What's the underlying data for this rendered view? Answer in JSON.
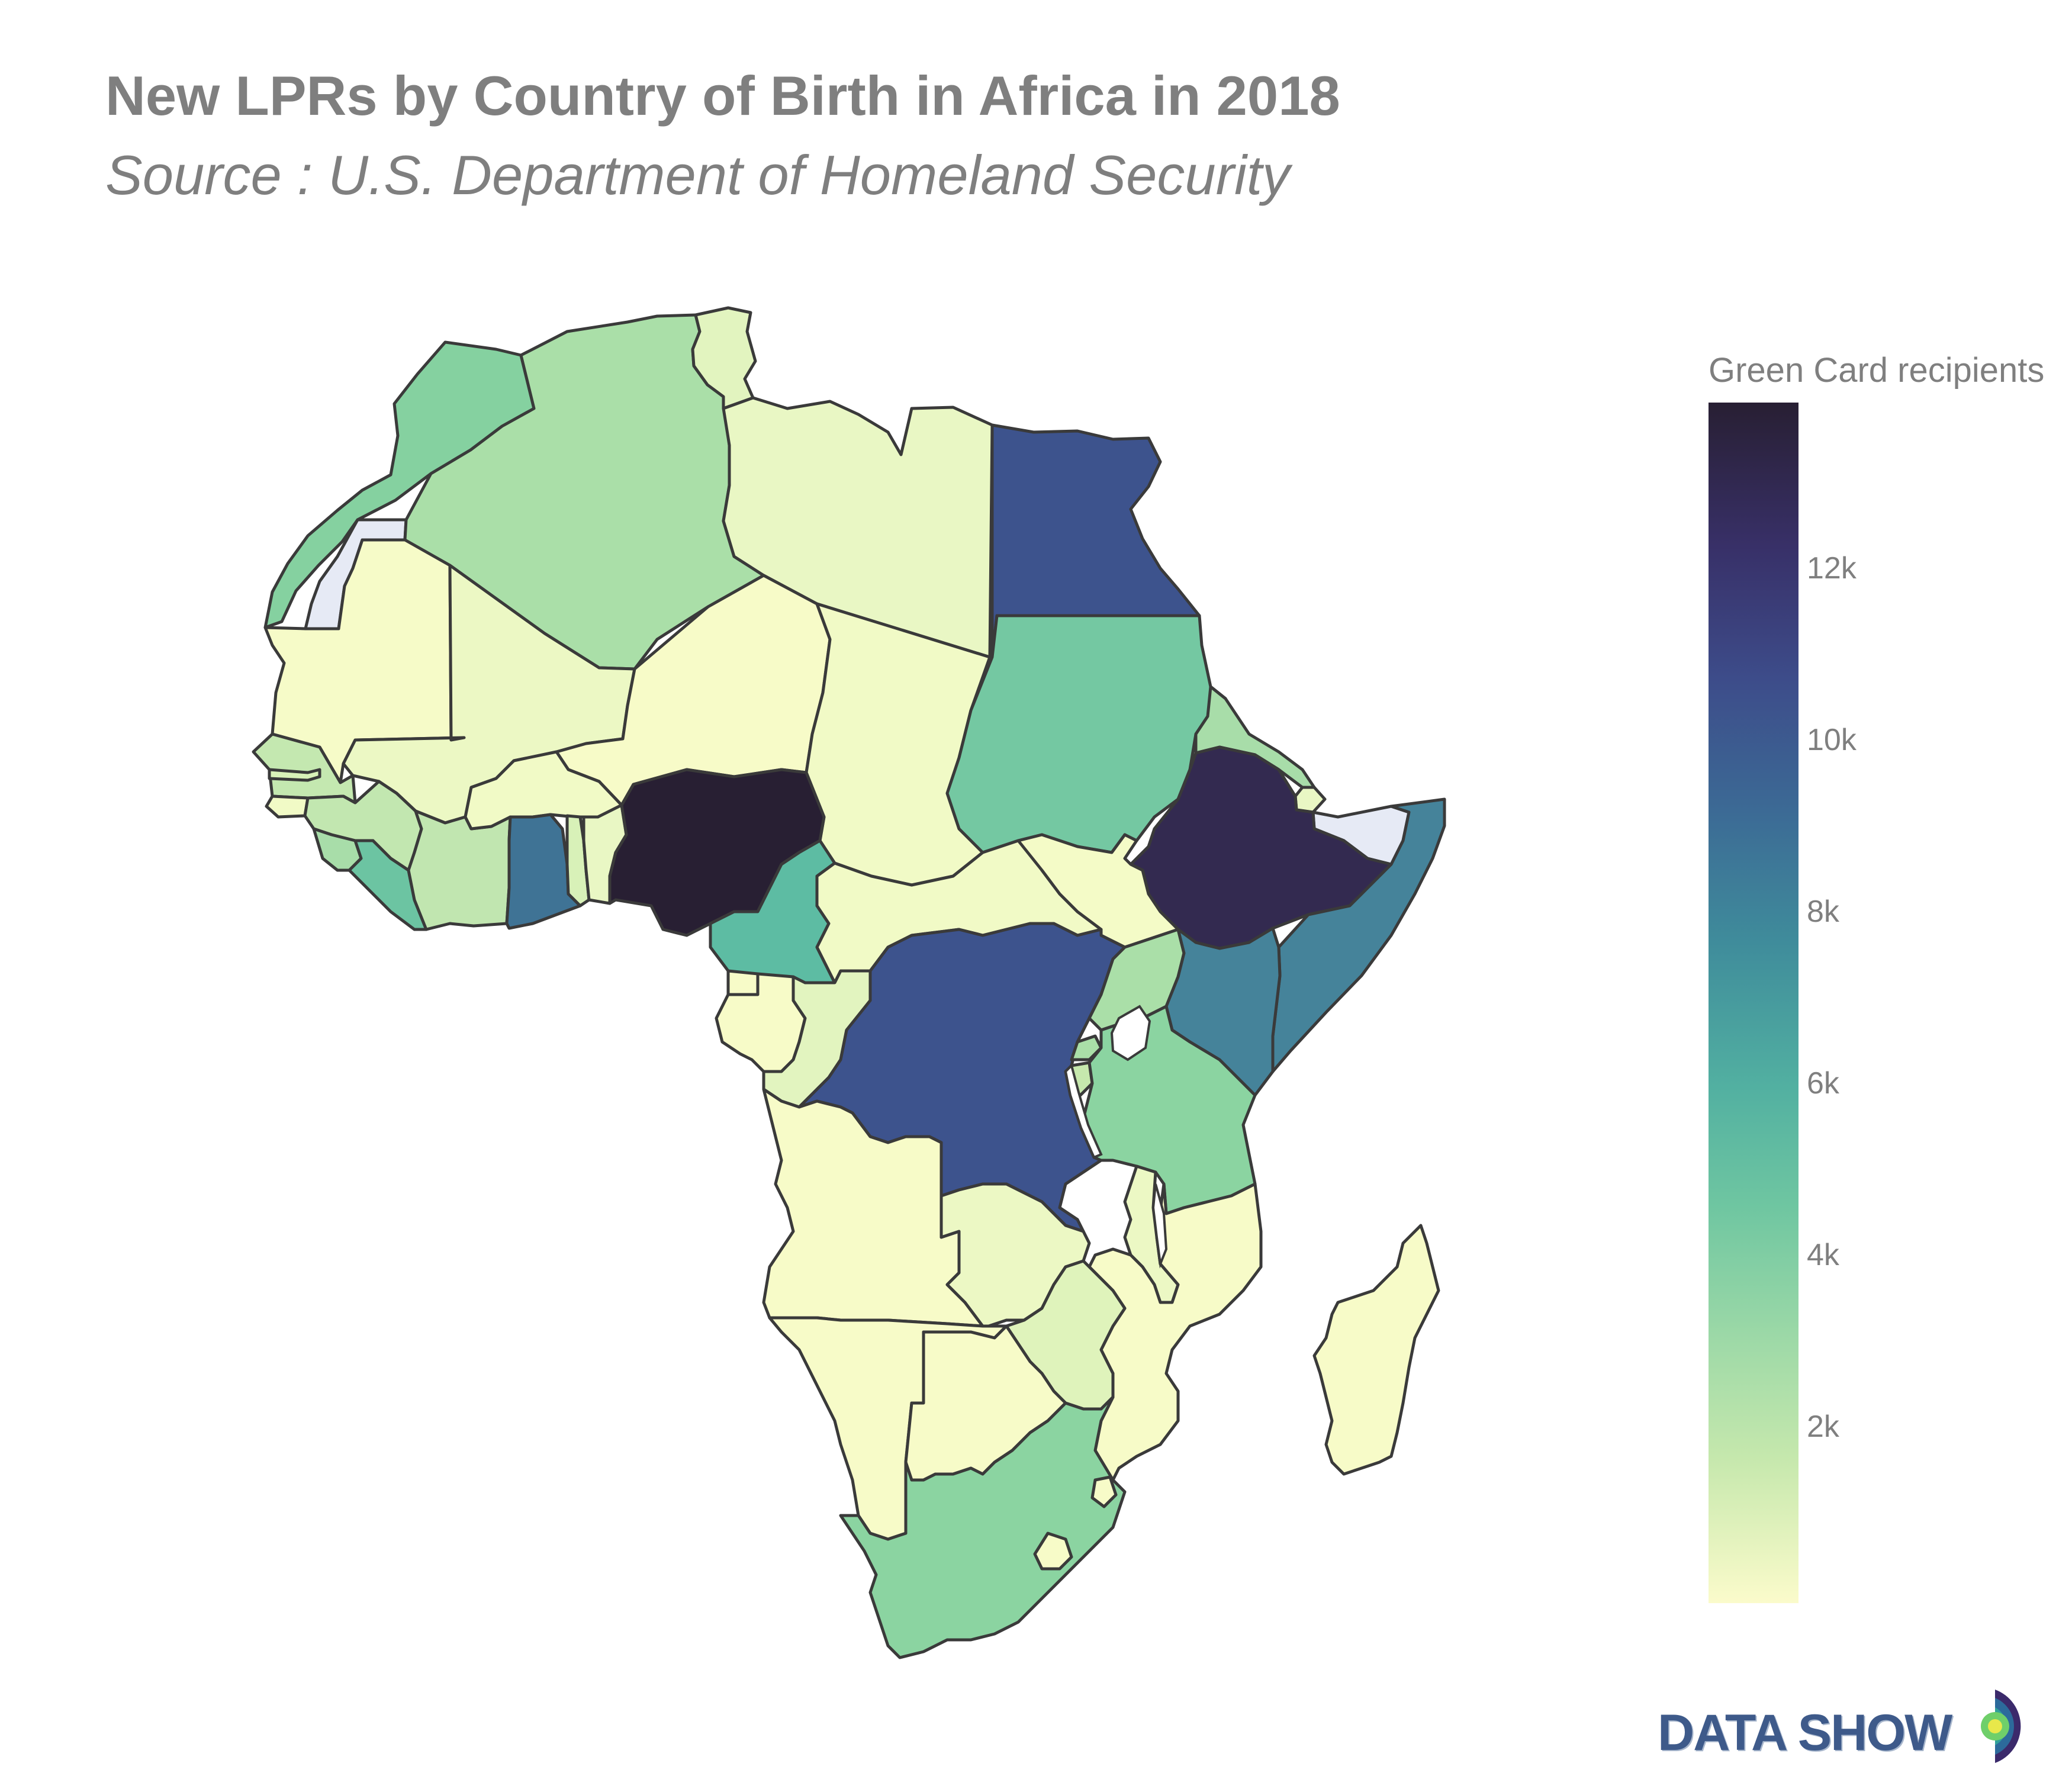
{
  "title": "New LPRs by Country of Birth in Africa in 2018",
  "subtitle": "Source : U.S. Department of Homeland Security",
  "colorbar": {
    "title": "Green Card recipients",
    "ticks": [
      {
        "label": "12k",
        "value": 12000
      },
      {
        "label": "10k",
        "value": 10000
      },
      {
        "label": "8k",
        "value": 8000
      },
      {
        "label": "6k",
        "value": 6000
      },
      {
        "label": "4k",
        "value": 4000
      },
      {
        "label": "2k",
        "value": 2000
      }
    ],
    "range": [
      0,
      14000
    ],
    "colors": [
      "#fbfbcb",
      "#c6e8ad",
      "#9dd9a7",
      "#6fc6a1",
      "#52b0a1",
      "#3f8c9b",
      "#3c6a95",
      "#3d4c8a",
      "#383068",
      "#281f33"
    ]
  },
  "brand": {
    "text": "DATA SHOW",
    "icon": "datashow-logo-icon"
  },
  "map": {
    "border_color": "#3a3a3a",
    "no_data_color": "#e6eaf5",
    "regions": [
      {
        "shape": "Morocco",
        "fill": "#85d1a0"
      },
      {
        "shape": "Western Sahara",
        "fill": "#e6eaf5"
      },
      {
        "shape": "Algeria",
        "fill": "#aadfa8"
      },
      {
        "shape": "Tunisia",
        "fill": "#e2f4bf"
      },
      {
        "shape": "Libya",
        "fill": "#e9f7c4"
      },
      {
        "shape": "Egypt",
        "fill": "#3d538d"
      },
      {
        "shape": "Mauritania",
        "fill": "#f6fbc8"
      },
      {
        "shape": "Mali",
        "fill": "#ecf8c4"
      },
      {
        "shape": "Niger",
        "fill": "#f7fbc8"
      },
      {
        "shape": "Chad",
        "fill": "#f1fac6"
      },
      {
        "shape": "Sudan",
        "fill": "#74c8a2"
      },
      {
        "shape": "Eritrea",
        "fill": "#a8dda9"
      },
      {
        "shape": "Djibouti",
        "fill": "#e9f7c4"
      },
      {
        "shape": "Somaliland",
        "fill": "#e6eaf5"
      },
      {
        "shape": "Ethiopia",
        "fill": "#332a50"
      },
      {
        "shape": "Somalia",
        "fill": "#45839a"
      },
      {
        "shape": "Senegal",
        "fill": "#c4e8b0"
      },
      {
        "shape": "Gambia",
        "fill": "#d8f1b8"
      },
      {
        "shape": "Guinea-Bissau",
        "fill": "#f1fac6"
      },
      {
        "shape": "Guinea",
        "fill": "#c2e7b0"
      },
      {
        "shape": "Sierra Leone",
        "fill": "#a8dda9"
      },
      {
        "shape": "Liberia",
        "fill": "#6cc4a2"
      },
      {
        "shape": "Cote d'Ivoire",
        "fill": "#c1e6b0"
      },
      {
        "shape": "Burkina Faso",
        "fill": "#f1fac6"
      },
      {
        "shape": "Ghana",
        "fill": "#3f7395"
      },
      {
        "shape": "Togo",
        "fill": "#d8f1b8"
      },
      {
        "shape": "Benin",
        "fill": "#e9f7c4"
      },
      {
        "shape": "Nigeria",
        "fill": "#281f33"
      },
      {
        "shape": "Cameroon",
        "fill": "#5dbca3"
      },
      {
        "shape": "Central African Republic",
        "fill": "#f1fac6"
      },
      {
        "shape": "South Sudan",
        "fill": "#f4fbc7"
      },
      {
        "shape": "Equatorial Guinea",
        "fill": "#f7fbc8"
      },
      {
        "shape": "Gabon",
        "fill": "#f7fbc8"
      },
      {
        "shape": "Republic of the Congo",
        "fill": "#e2f4bf"
      },
      {
        "shape": "DR Congo",
        "fill": "#3d538d"
      },
      {
        "shape": "Uganda",
        "fill": "#aadfa8"
      },
      {
        "shape": "Kenya",
        "fill": "#45839a"
      },
      {
        "shape": "Rwanda",
        "fill": "#aadfa8"
      },
      {
        "shape": "Burundi",
        "fill": "#c6e8ad"
      },
      {
        "shape": "Tanzania",
        "fill": "#8bd4a1"
      },
      {
        "shape": "Angola",
        "fill": "#f7fbc8"
      },
      {
        "shape": "Zambia",
        "fill": "#ecf8c4"
      },
      {
        "shape": "Malawi",
        "fill": "#ecf8c4"
      },
      {
        "shape": "Mozambique",
        "fill": "#f7fbc8"
      },
      {
        "shape": "Zimbabwe",
        "fill": "#dff3bb"
      },
      {
        "shape": "Namibia",
        "fill": "#f7fbc8"
      },
      {
        "shape": "Botswana",
        "fill": "#f7fbc8"
      },
      {
        "shape": "South Africa",
        "fill": "#8bd4a1"
      },
      {
        "shape": "Eswatini",
        "fill": "#f7fbc8"
      },
      {
        "shape": "Lesotho",
        "fill": "#f7fbc8"
      },
      {
        "shape": "Madagascar",
        "fill": "#f7fbc8"
      }
    ]
  }
}
